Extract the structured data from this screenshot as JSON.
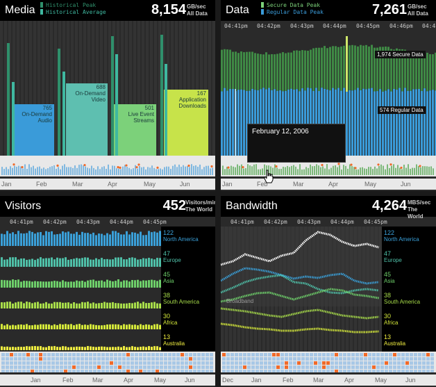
{
  "media": {
    "title": "Media",
    "legend": [
      "Historical Peak",
      "Historical Average"
    ],
    "legend_colors": [
      "#2f8f6b",
      "#3fb8a0"
    ],
    "value": "8,154",
    "unit": [
      "GB/sec",
      "All Data"
    ],
    "blocks": [
      {
        "value": "765",
        "lines": [
          "On-Demand",
          "Audio"
        ],
        "color": "#3a9bd9"
      },
      {
        "value": "688",
        "lines": [
          "On-Demand",
          "Video"
        ],
        "color": "#5ebfb0"
      },
      {
        "value": "501",
        "lines": [
          "Live Event",
          "Streams"
        ],
        "color": "#7cd17a"
      },
      {
        "value": "167",
        "lines": [
          "Application",
          "Downloads"
        ],
        "color": "#c7e34a"
      }
    ],
    "months": [
      "Jan",
      "Feb",
      "Mar",
      "Apr",
      "May",
      "Jun"
    ]
  },
  "data": {
    "title": "Data",
    "legend": [
      "Secure Data Peak",
      "Regular Data Peak"
    ],
    "legend_colors": [
      "#7cd17a",
      "#3a9bd9"
    ],
    "value": "7,261",
    "unit": [
      "GB/sec",
      "All Data"
    ],
    "times": [
      "04:41pm",
      "04:42pm",
      "04:43pm",
      "04:44pm",
      "04:45pm",
      "04:46pm",
      "04:4"
    ],
    "callouts": [
      "1,974 Secure Data",
      "574 Regular Data"
    ],
    "tooltip": "February 12, 2006",
    "months": [
      "Jan",
      "Feb",
      "Mar",
      "Apr",
      "May",
      "Jun"
    ]
  },
  "visitors": {
    "title": "Visitors",
    "value": "452",
    "unit": [
      "Visitors/min",
      "The World"
    ],
    "times": [
      "04:41pm",
      "04:42pm",
      "04:43pm",
      "04:44pm",
      "04:45pm"
    ],
    "regions": [
      {
        "value": "122",
        "name": "North America",
        "color": "#3aa0d9"
      },
      {
        "value": "47",
        "name": "Europe",
        "color": "#4fc0a8"
      },
      {
        "value": "45",
        "name": "Asia",
        "color": "#6ecf6a"
      },
      {
        "value": "38",
        "name": "South America",
        "color": "#a8dd4a"
      },
      {
        "value": "30",
        "name": "Africa",
        "color": "#d4e83a"
      },
      {
        "value": "13",
        "name": "Australia",
        "color": "#f0ee40"
      }
    ],
    "months": [
      "Jan",
      "Feb",
      "Mar",
      "Apr",
      "May",
      "Jun"
    ]
  },
  "bandwidth": {
    "title": "Bandwidth",
    "value": "4,264",
    "unit": [
      "MBS/sec",
      "The World"
    ],
    "times": [
      "04:41pm",
      "04:42pm",
      "04:43pm",
      "04:44pm",
      "04:45pm"
    ],
    "band_label": "Broadband",
    "regions": [
      {
        "value": "122",
        "name": "North America",
        "color": "#3aa0d9"
      },
      {
        "value": "47",
        "name": "Europe",
        "color": "#4fc0a8"
      },
      {
        "value": "45",
        "name": "Asia",
        "color": "#6ecf6a"
      },
      {
        "value": "38",
        "name": "South America",
        "color": "#a8dd4a"
      },
      {
        "value": "30",
        "name": "Africa",
        "color": "#d4e83a"
      },
      {
        "value": "13",
        "name": "Australia",
        "color": "#f0ee40"
      }
    ],
    "months": [
      "Dec",
      "Jan",
      "Feb",
      "Mar",
      "Apr",
      "May",
      "Jun"
    ]
  }
}
